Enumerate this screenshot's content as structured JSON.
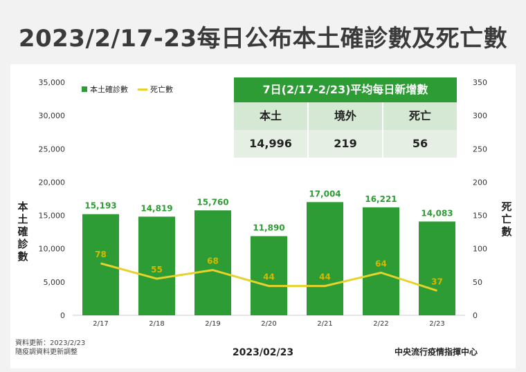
{
  "title": "2023/2/17-23每日公布本土確診數及死亡數",
  "legend": {
    "bar_label": "本土確診數",
    "line_label": "死亡數"
  },
  "left_axis_label": "本土確診數",
  "right_axis_label": "死亡數",
  "summary": {
    "header": "7日(2/17-2/23)平均每日新增數",
    "columns": [
      "本土",
      "境外",
      "死亡"
    ],
    "values": [
      "14,996",
      "219",
      "56"
    ]
  },
  "footer": {
    "update_line1": "資料更新：2023/2/23",
    "update_line2": "隨疫調資料更新調整",
    "date": "2023/02/23",
    "source": "中央流行疫情指揮中心"
  },
  "colors": {
    "bar": "#2e9c35",
    "line": "#e6d22a",
    "bar_label": "#2e9c35",
    "line_label": "#d4b800"
  },
  "chart_data": {
    "type": "bar",
    "categories": [
      "2/17",
      "2/18",
      "2/19",
      "2/20",
      "2/21",
      "2/22",
      "2/23"
    ],
    "series": [
      {
        "name": "本土確診數",
        "type": "bar",
        "axis": "left",
        "values": [
          15193,
          14819,
          15760,
          11890,
          17004,
          16221,
          14083
        ],
        "labels": [
          "15,193",
          "14,819",
          "15,760",
          "11,890",
          "17,004",
          "16,221",
          "14,083"
        ]
      },
      {
        "name": "死亡數",
        "type": "line",
        "axis": "right",
        "values": [
          78,
          55,
          68,
          44,
          44,
          64,
          37
        ]
      }
    ],
    "ylim_left": [
      0,
      35000
    ],
    "ylim_right": [
      0,
      350
    ],
    "left_ticks": [
      "0",
      "5,000",
      "10,000",
      "15,000",
      "20,000",
      "25,000",
      "30,000",
      "35,000"
    ],
    "right_ticks": [
      "0",
      "50",
      "100",
      "150",
      "200",
      "250",
      "300",
      "350"
    ]
  }
}
